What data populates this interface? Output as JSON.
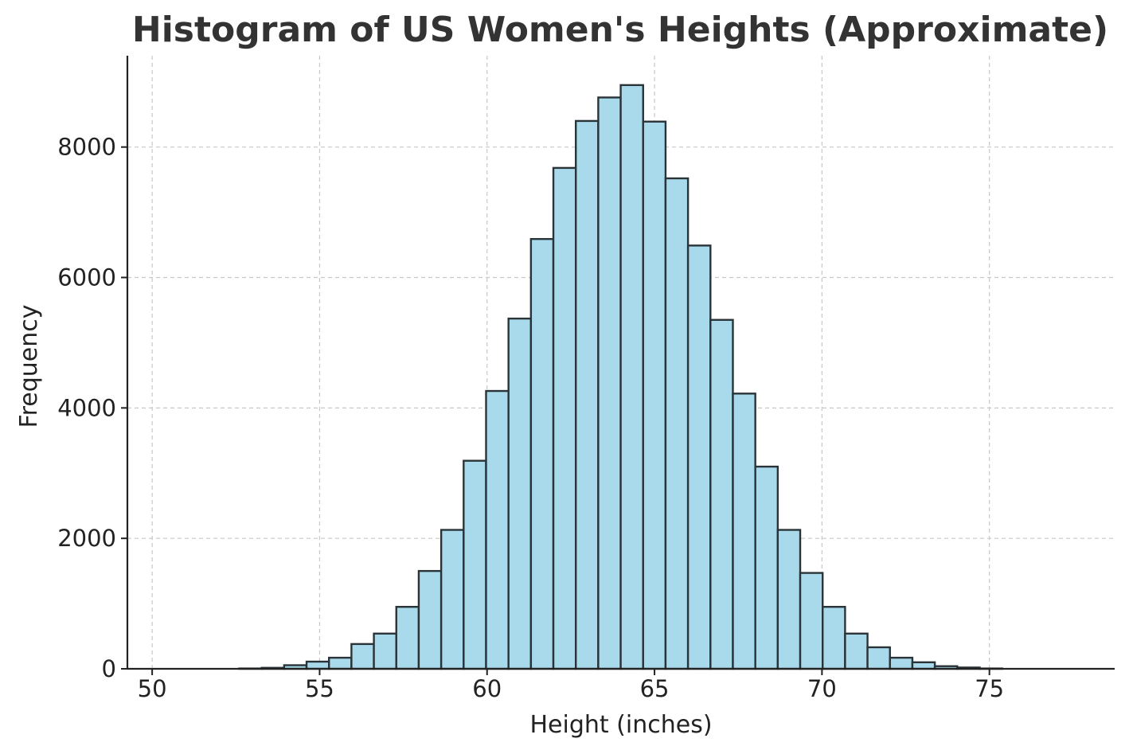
{
  "chart_data": {
    "type": "bar",
    "title": "Histogram of US Women's Heights (Approximate)",
    "xlabel": "Height (inches)",
    "ylabel": "Frequency",
    "xlim": [
      49.26,
      78.74
    ],
    "ylim": [
      0,
      9400
    ],
    "grid": true,
    "x_ticks": [
      50,
      55,
      60,
      65,
      70,
      75
    ],
    "y_ticks": [
      0,
      2000,
      4000,
      6000,
      8000
    ],
    "bin_width": 0.67,
    "bin_start": 52.6,
    "values": [
      5,
      15,
      55,
      110,
      170,
      380,
      540,
      950,
      1500,
      2130,
      3190,
      4260,
      5370,
      6590,
      7680,
      8400,
      8760,
      8950,
      8390,
      7520,
      6490,
      5350,
      4220,
      3100,
      2130,
      1470,
      950,
      540,
      330,
      170,
      100,
      40,
      20,
      5
    ],
    "colors": {
      "bar_fill": "#a8daec",
      "bar_edge": "#2a3438",
      "grid": "#c8c8c8",
      "axis": "#222222"
    }
  }
}
